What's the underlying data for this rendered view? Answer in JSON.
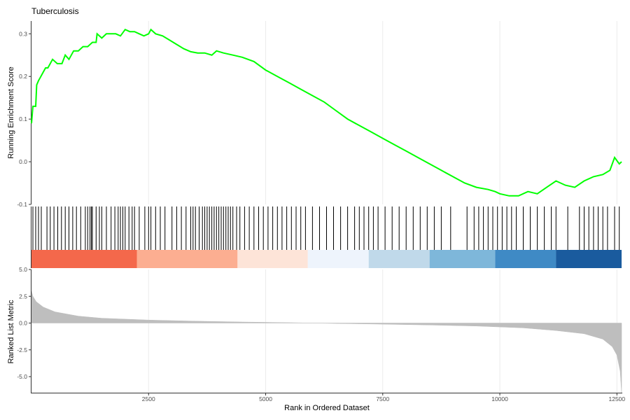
{
  "chart_data": {
    "type": "line",
    "title": "Tuberculosis",
    "xlabel": "Rank in Ordered Dataset",
    "xlim": [
      0,
      12600
    ],
    "x_ticks": [
      2500,
      5000,
      7500,
      10000,
      12500
    ],
    "panels": {
      "running_score": {
        "ylabel": "Running Enrichment Score",
        "ylim": [
          -0.1,
          0.33
        ],
        "y_ticks": [
          -0.1,
          0.0,
          0.1,
          0.2,
          0.3
        ],
        "y_tick_labels": [
          "-0.1",
          "0.0",
          "0.1",
          "0.2",
          "0.3"
        ],
        "line_color": "#00ff00",
        "points": [
          [
            0,
            0.09
          ],
          [
            30,
            0.13
          ],
          [
            90,
            0.13
          ],
          [
            110,
            0.18
          ],
          [
            150,
            0.19
          ],
          [
            200,
            0.2
          ],
          [
            250,
            0.21
          ],
          [
            300,
            0.22
          ],
          [
            350,
            0.22
          ],
          [
            450,
            0.24
          ],
          [
            550,
            0.23
          ],
          [
            650,
            0.23
          ],
          [
            720,
            0.25
          ],
          [
            800,
            0.24
          ],
          [
            900,
            0.26
          ],
          [
            1000,
            0.26
          ],
          [
            1100,
            0.27
          ],
          [
            1200,
            0.27
          ],
          [
            1300,
            0.28
          ],
          [
            1380,
            0.28
          ],
          [
            1400,
            0.3
          ],
          [
            1500,
            0.29
          ],
          [
            1600,
            0.3
          ],
          [
            1700,
            0.3
          ],
          [
            1800,
            0.3
          ],
          [
            1900,
            0.295
          ],
          [
            2000,
            0.31
          ],
          [
            2100,
            0.305
          ],
          [
            2200,
            0.305
          ],
          [
            2300,
            0.3
          ],
          [
            2400,
            0.295
          ],
          [
            2500,
            0.3
          ],
          [
            2550,
            0.31
          ],
          [
            2650,
            0.3
          ],
          [
            2800,
            0.295
          ],
          [
            2950,
            0.285
          ],
          [
            3100,
            0.275
          ],
          [
            3250,
            0.265
          ],
          [
            3400,
            0.258
          ],
          [
            3550,
            0.255
          ],
          [
            3700,
            0.255
          ],
          [
            3850,
            0.25
          ],
          [
            3950,
            0.26
          ],
          [
            4100,
            0.255
          ],
          [
            4300,
            0.25
          ],
          [
            4500,
            0.245
          ],
          [
            4750,
            0.235
          ],
          [
            5000,
            0.215
          ],
          [
            5250,
            0.2
          ],
          [
            5500,
            0.185
          ],
          [
            5750,
            0.17
          ],
          [
            6000,
            0.155
          ],
          [
            6250,
            0.14
          ],
          [
            6500,
            0.12
          ],
          [
            6750,
            0.1
          ],
          [
            7000,
            0.085
          ],
          [
            7250,
            0.07
          ],
          [
            7500,
            0.055
          ],
          [
            7750,
            0.04
          ],
          [
            8000,
            0.025
          ],
          [
            8250,
            0.01
          ],
          [
            8500,
            -0.005
          ],
          [
            8750,
            -0.02
          ],
          [
            9000,
            -0.035
          ],
          [
            9250,
            -0.05
          ],
          [
            9500,
            -0.06
          ],
          [
            9750,
            -0.065
          ],
          [
            9900,
            -0.07
          ],
          [
            10000,
            -0.075
          ],
          [
            10200,
            -0.08
          ],
          [
            10400,
            -0.08
          ],
          [
            10600,
            -0.07
          ],
          [
            10800,
            -0.075
          ],
          [
            11000,
            -0.06
          ],
          [
            11200,
            -0.045
          ],
          [
            11400,
            -0.055
          ],
          [
            11600,
            -0.06
          ],
          [
            11800,
            -0.045
          ],
          [
            12000,
            -0.035
          ],
          [
            12200,
            -0.03
          ],
          [
            12350,
            -0.02
          ],
          [
            12450,
            0.01
          ],
          [
            12550,
            -0.005
          ],
          [
            12600,
            0.0
          ]
        ]
      },
      "gene_hits": {
        "positions": [
          30,
          90,
          150,
          210,
          330,
          400,
          480,
          560,
          640,
          720,
          800,
          880,
          960,
          1050,
          1150,
          1200,
          1250,
          1280,
          1300,
          1380,
          1450,
          1500,
          1600,
          1700,
          1780,
          1850,
          1900,
          1950,
          2000,
          2080,
          2150,
          2200,
          2300,
          2420,
          2500,
          2550,
          2650,
          2750,
          2850,
          3000,
          3100,
          3200,
          3300,
          3400,
          3450,
          3500,
          3580,
          3650,
          3700,
          3750,
          3800,
          3850,
          3900,
          3950,
          4000,
          4050,
          4100,
          4150,
          4200,
          4250,
          4300,
          4380,
          4450,
          4550,
          4650,
          4750,
          4850,
          4950,
          5050,
          5150,
          5250,
          5350,
          5450,
          5550,
          5650,
          5750,
          5850,
          6000,
          6150,
          6300,
          6450,
          6600,
          6750,
          6900,
          7000,
          7100,
          7200,
          7300,
          7400,
          7550,
          7700,
          7850,
          8000,
          8150,
          8300,
          8450,
          8600,
          8750,
          8950,
          9300,
          9450,
          9550,
          9650,
          9750,
          9850,
          9950,
          10050,
          10150,
          10250,
          10350,
          10500,
          10650,
          10800,
          10950,
          11100,
          11200,
          11450,
          11700,
          11800,
          11900,
          12000,
          12100,
          12200,
          12300,
          12450,
          12550
        ]
      },
      "ranked_metric": {
        "ylabel": "Ranked List Metric",
        "ylim": [
          -6.5,
          5.0
        ],
        "y_ticks": [
          -5.0,
          -2.5,
          0.0,
          2.5,
          5.0
        ],
        "y_tick_labels": [
          "-5.0",
          "-2.5",
          "0.0",
          "2.5",
          "5.0"
        ],
        "fill_color": "#bebebe",
        "points": [
          [
            0,
            3.0
          ],
          [
            30,
            2.5
          ],
          [
            100,
            2.0
          ],
          [
            250,
            1.5
          ],
          [
            500,
            1.05
          ],
          [
            1000,
            0.65
          ],
          [
            1500,
            0.45
          ],
          [
            2500,
            0.28
          ],
          [
            3500,
            0.18
          ],
          [
            4500,
            0.1
          ],
          [
            5500,
            0.04
          ],
          [
            6000,
            0.0
          ],
          [
            6500,
            -0.04
          ],
          [
            7500,
            -0.1
          ],
          [
            8500,
            -0.18
          ],
          [
            9500,
            -0.28
          ],
          [
            10500,
            -0.45
          ],
          [
            11200,
            -0.7
          ],
          [
            11800,
            -1.0
          ],
          [
            12200,
            -1.5
          ],
          [
            12400,
            -2.2
          ],
          [
            12500,
            -3.0
          ],
          [
            12570,
            -4.5
          ],
          [
            12600,
            -6.5
          ]
        ]
      },
      "color_bar": {
        "segments": [
          {
            "from": 0,
            "to": 2250,
            "color": "#f4684b"
          },
          {
            "from": 2250,
            "to": 4400,
            "color": "#fcae91"
          },
          {
            "from": 4400,
            "to": 5900,
            "color": "#fde4d8"
          },
          {
            "from": 5900,
            "to": 7200,
            "color": "#eef4fc"
          },
          {
            "from": 7200,
            "to": 8500,
            "color": "#c0d9ea"
          },
          {
            "from": 8500,
            "to": 9900,
            "color": "#7eb7da"
          },
          {
            "from": 9900,
            "to": 11200,
            "color": "#3f8ac5"
          },
          {
            "from": 11200,
            "to": 12600,
            "color": "#1a5b9e"
          }
        ]
      }
    }
  }
}
